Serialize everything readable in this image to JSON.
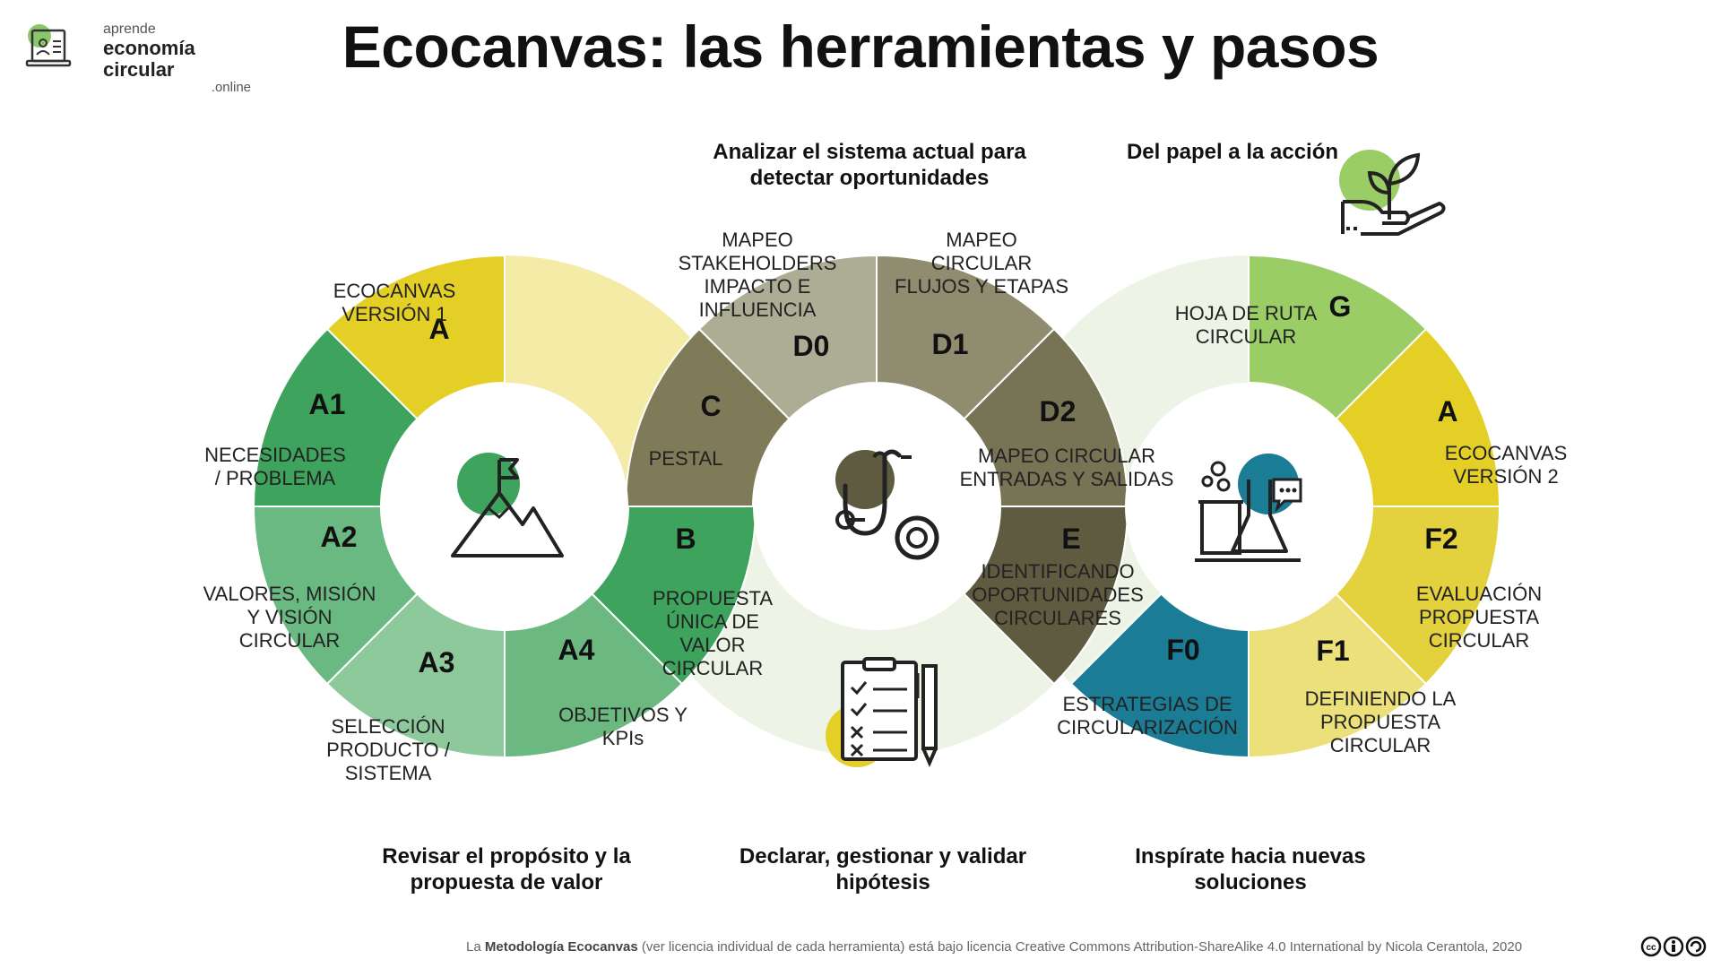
{
  "title": "Ecocanvas: las herramientas y pasos",
  "logo": {
    "line1": "aprende",
    "line2": "economía circular",
    "line3": ".online"
  },
  "captions": {
    "analizar": "Analizar el sistema actual para detectar oportunidades",
    "papel": "Del papel a la acción",
    "revisar": "Revisar el propósito y la propuesta de valor",
    "declarar": "Declarar, gestionar y validar hipótesis",
    "inspirate": "Inspírate hacia nuevas soluciones"
  },
  "segments": [
    {
      "code": "A",
      "label": [
        "ECOCANVAS",
        "VERSIÓN 1"
      ],
      "color": "#e3cf26"
    },
    {
      "code": "A1",
      "label": [
        "NECESIDADES",
        "/ PROBLEMA"
      ],
      "color": "#3ea35c"
    },
    {
      "code": "A2",
      "label": [
        "VALORES, MISIÓN",
        "Y VISIÓN",
        "CIRCULAR"
      ],
      "color": "#6ab982"
    },
    {
      "code": "A3",
      "label": [
        "SELECCIÓN",
        "PRODUCTO /",
        "SISTEMA"
      ],
      "color": "#8ec99c"
    },
    {
      "code": "A4",
      "label": [
        "OBJETIVOS Y",
        "KPIs"
      ],
      "color": "#6bb981"
    },
    {
      "code": "B",
      "label": [
        "PROPUESTA",
        "ÚNICA DE",
        "VALOR",
        "CIRCULAR"
      ],
      "color": "#3ea35c"
    },
    {
      "code": "C",
      "label": [
        "PESTAL"
      ],
      "color": "#7f7a58"
    },
    {
      "code": "D0",
      "label": [
        "MAPEO",
        "STAKEHOLDERS",
        "IMPACTO E",
        "INFLUENCIA"
      ],
      "color": "#adad96"
    },
    {
      "code": "D1",
      "label": [
        "MAPEO",
        "CIRCULAR",
        "FLUJOS Y ETAPAS"
      ],
      "color": "#8f8c70"
    },
    {
      "code": "D2",
      "label": [
        "MAPEO CIRCULAR",
        "ENTRADAS Y SALIDAS"
      ],
      "color": "#777355"
    },
    {
      "code": "E",
      "label": [
        "IDENTIFICANDO",
        "OPORTUNIDADES",
        "CIRCULARES"
      ],
      "color": "#5e5b40"
    },
    {
      "code": "F0",
      "label": [
        "ESTRATEGIAS DE",
        "CIRCULARIZACIÓN"
      ],
      "color": "#1a7d95"
    },
    {
      "code": "F1",
      "label": [
        "DEFINIENDO LA",
        "PROPUESTA",
        "CIRCULAR"
      ],
      "color": "#ebe07a"
    },
    {
      "code": "F2",
      "label": [
        "EVALUACIÓN",
        "PROPUESTA",
        "CIRCULAR"
      ],
      "color": "#e3d13e"
    },
    {
      "code": "A",
      "label": [
        "ECOCANVAS",
        "VERSIÓN 2"
      ],
      "color": "#e3cf26"
    },
    {
      "code": "G",
      "label": [
        "HOJA DE RUTA",
        "CIRCULAR"
      ],
      "color": "#9acd66"
    }
  ],
  "icons": {
    "left": "mountain-flag-icon",
    "center": "stethoscope-icon",
    "right": "lab-flask-chat-icon",
    "top_right": "plant-hand-icon",
    "bottom": "checklist-pencil-icon",
    "accent_green": "#3ea35c",
    "accent_olive": "#5e5b40",
    "accent_teal": "#1a7d95",
    "accent_yellow": "#e3cf26",
    "accent_lightgreen": "#9acd66"
  },
  "footer": {
    "prefix": "La ",
    "bold": "Metodología Ecocanvas",
    "rest": " (ver licencia individual de cada herramienta) está bajo licencia Creative Commons Attribution-ShareAlike 4.0 International by Nicola Cerantola, 2020"
  },
  "license_badge": "cc-by-sa-icon"
}
